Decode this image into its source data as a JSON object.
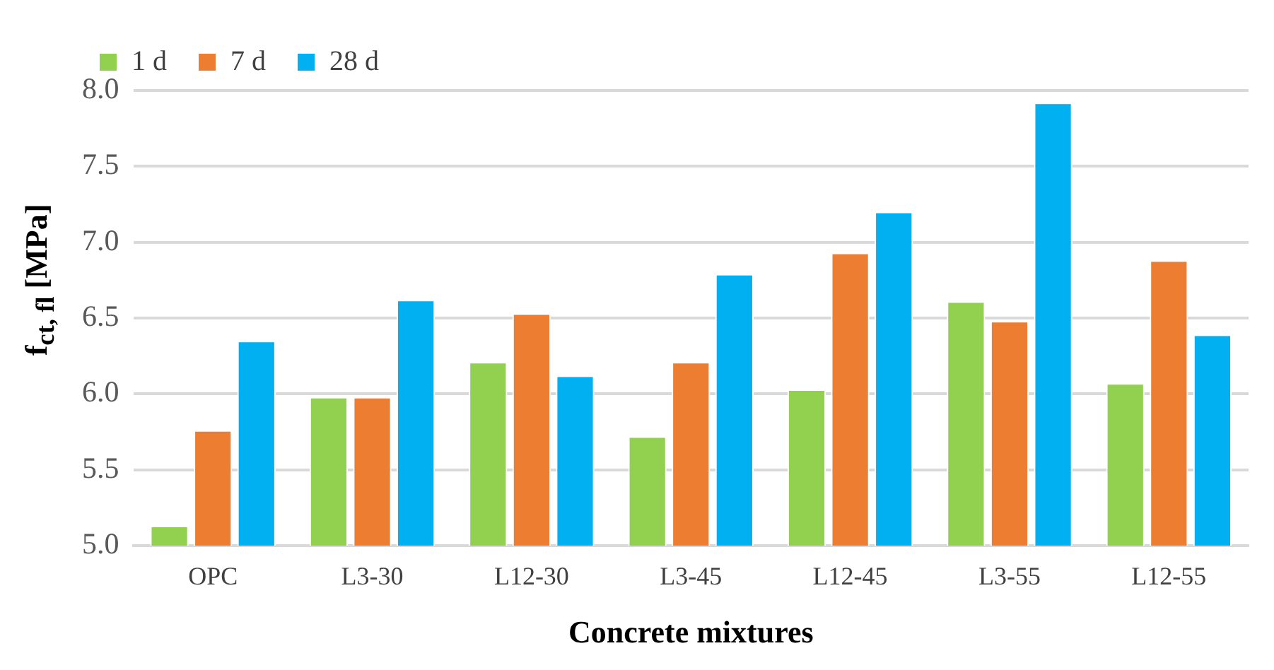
{
  "chart_data": {
    "type": "bar",
    "xlabel": "Concrete mixtures",
    "ylabel": "f$_{ct, fl}$ [MPa]",
    "categories": [
      "OPC",
      "L3-30",
      "L12-30",
      "L3-45",
      "L12-45",
      "L3-55",
      "L12-55"
    ],
    "series": [
      {
        "name": "1 d",
        "color": "#92d050",
        "values": [
          5.13,
          5.98,
          6.21,
          5.72,
          6.03,
          6.61,
          6.07
        ]
      },
      {
        "name": "7 d",
        "color": "#ed7d31",
        "values": [
          5.76,
          5.98,
          6.53,
          6.21,
          6.93,
          6.48,
          6.88
        ]
      },
      {
        "name": "28 d",
        "color": "#00b0f0",
        "values": [
          6.35,
          6.62,
          6.12,
          6.79,
          7.2,
          7.92,
          6.39
        ]
      }
    ],
    "ylim": [
      5,
      8
    ],
    "yticks": [
      {
        "value": 5,
        "label": "5.0"
      },
      5.5,
      {
        "value": 6,
        "label": "6.0"
      },
      6.5,
      {
        "value": 7,
        "label": "7.0"
      },
      7.5,
      {
        "value": 8,
        "label": "8.0"
      }
    ],
    "grid": "y",
    "legend": "top left"
  }
}
